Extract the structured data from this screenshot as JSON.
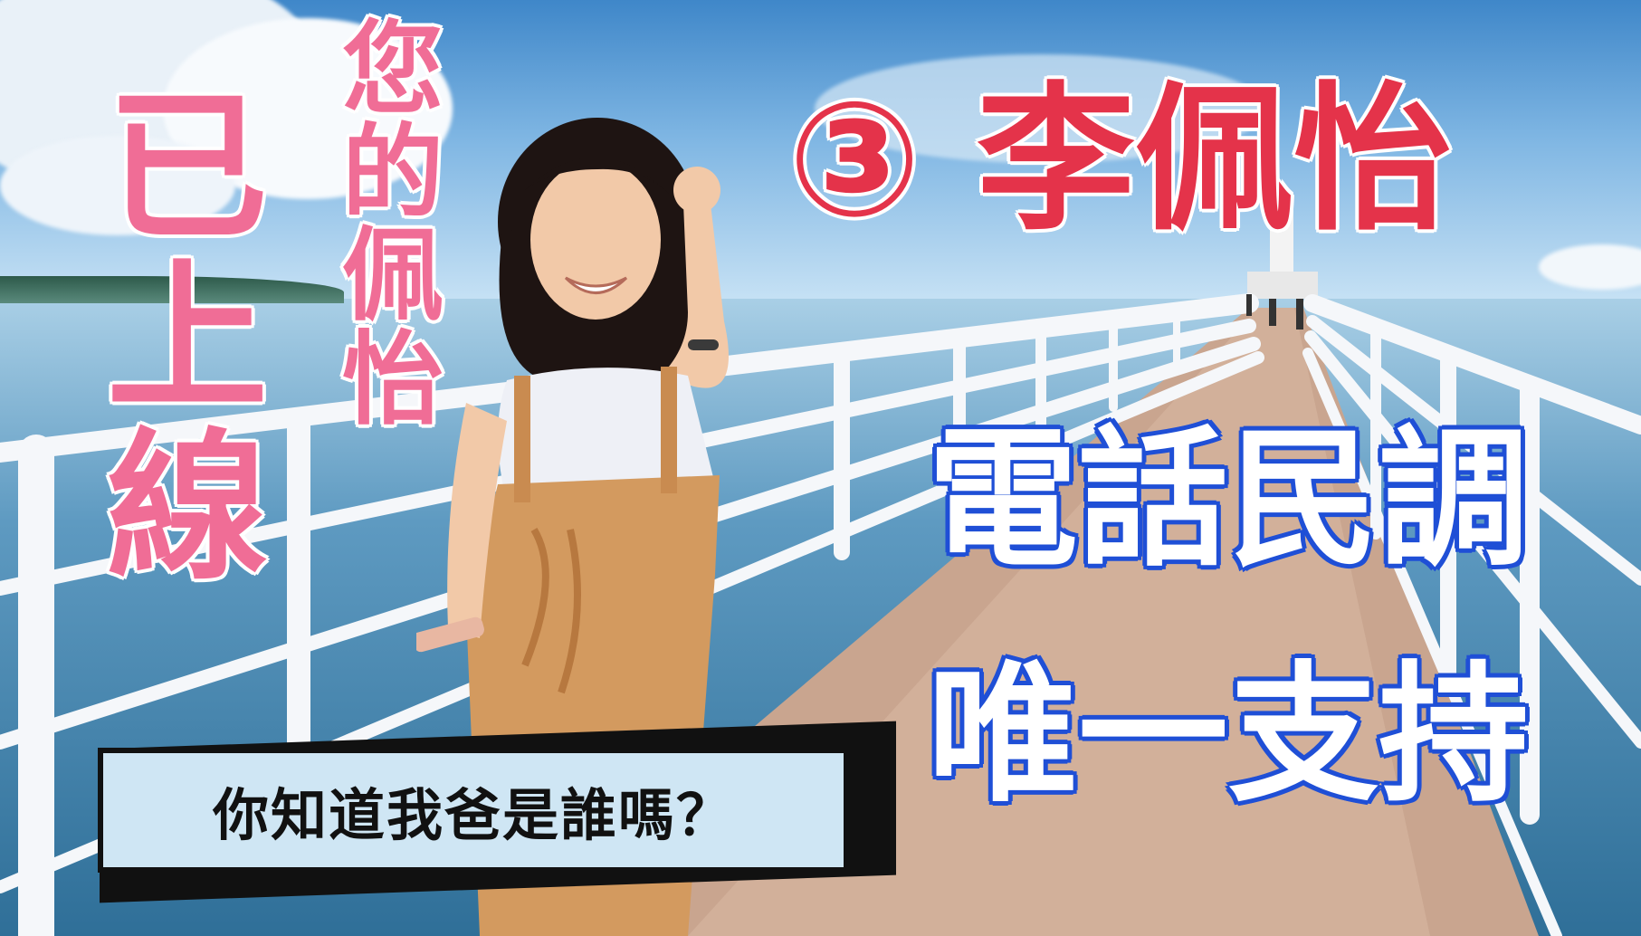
{
  "headline_vertical_left": "已上線",
  "headline_vertical_small": "您的佩怡",
  "candidate": {
    "number": "③",
    "name": "李佩怡"
  },
  "callout_line1": "電話民調",
  "callout_line2": "唯一支持",
  "banner_text": "你知道我爸是誰嗎？",
  "colors": {
    "pink": "#f06d96",
    "red": "#e4334a",
    "blue": "#1f4fd6",
    "banner_bg": "#cfe6f4"
  }
}
